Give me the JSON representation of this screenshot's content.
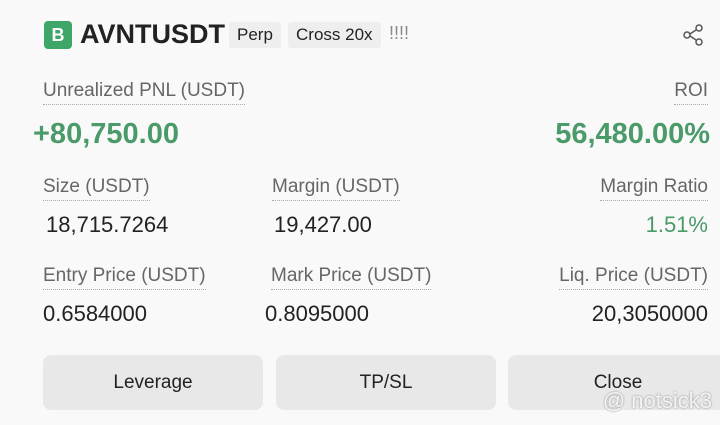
{
  "header": {
    "badge": "B",
    "symbol": "AVNTUSDT",
    "tags": [
      "Perp",
      "Cross 20x"
    ],
    "marks": "!!!!"
  },
  "pnl": {
    "label": "Unrealized PNL (USDT)",
    "value": "+80,750.00"
  },
  "roi": {
    "label": "ROI",
    "value": "56,480.00%"
  },
  "stats": [
    {
      "label": "Size (USDT)",
      "value": "18,715.7264"
    },
    {
      "label": "Margin (USDT)",
      "value": "19,427.00"
    },
    {
      "label": "Margin Ratio",
      "value": "1.51%"
    },
    {
      "label": "Entry Price (USDT)",
      "value": "0.6584000"
    },
    {
      "label": "Mark Price (USDT)",
      "value": "0.8095000"
    },
    {
      "label": "Liq. Price (USDT)",
      "value": "20,3050000"
    }
  ],
  "buttons": [
    "Leverage",
    "TP/SL",
    "Close"
  ],
  "watermark": "@ notsick3"
}
